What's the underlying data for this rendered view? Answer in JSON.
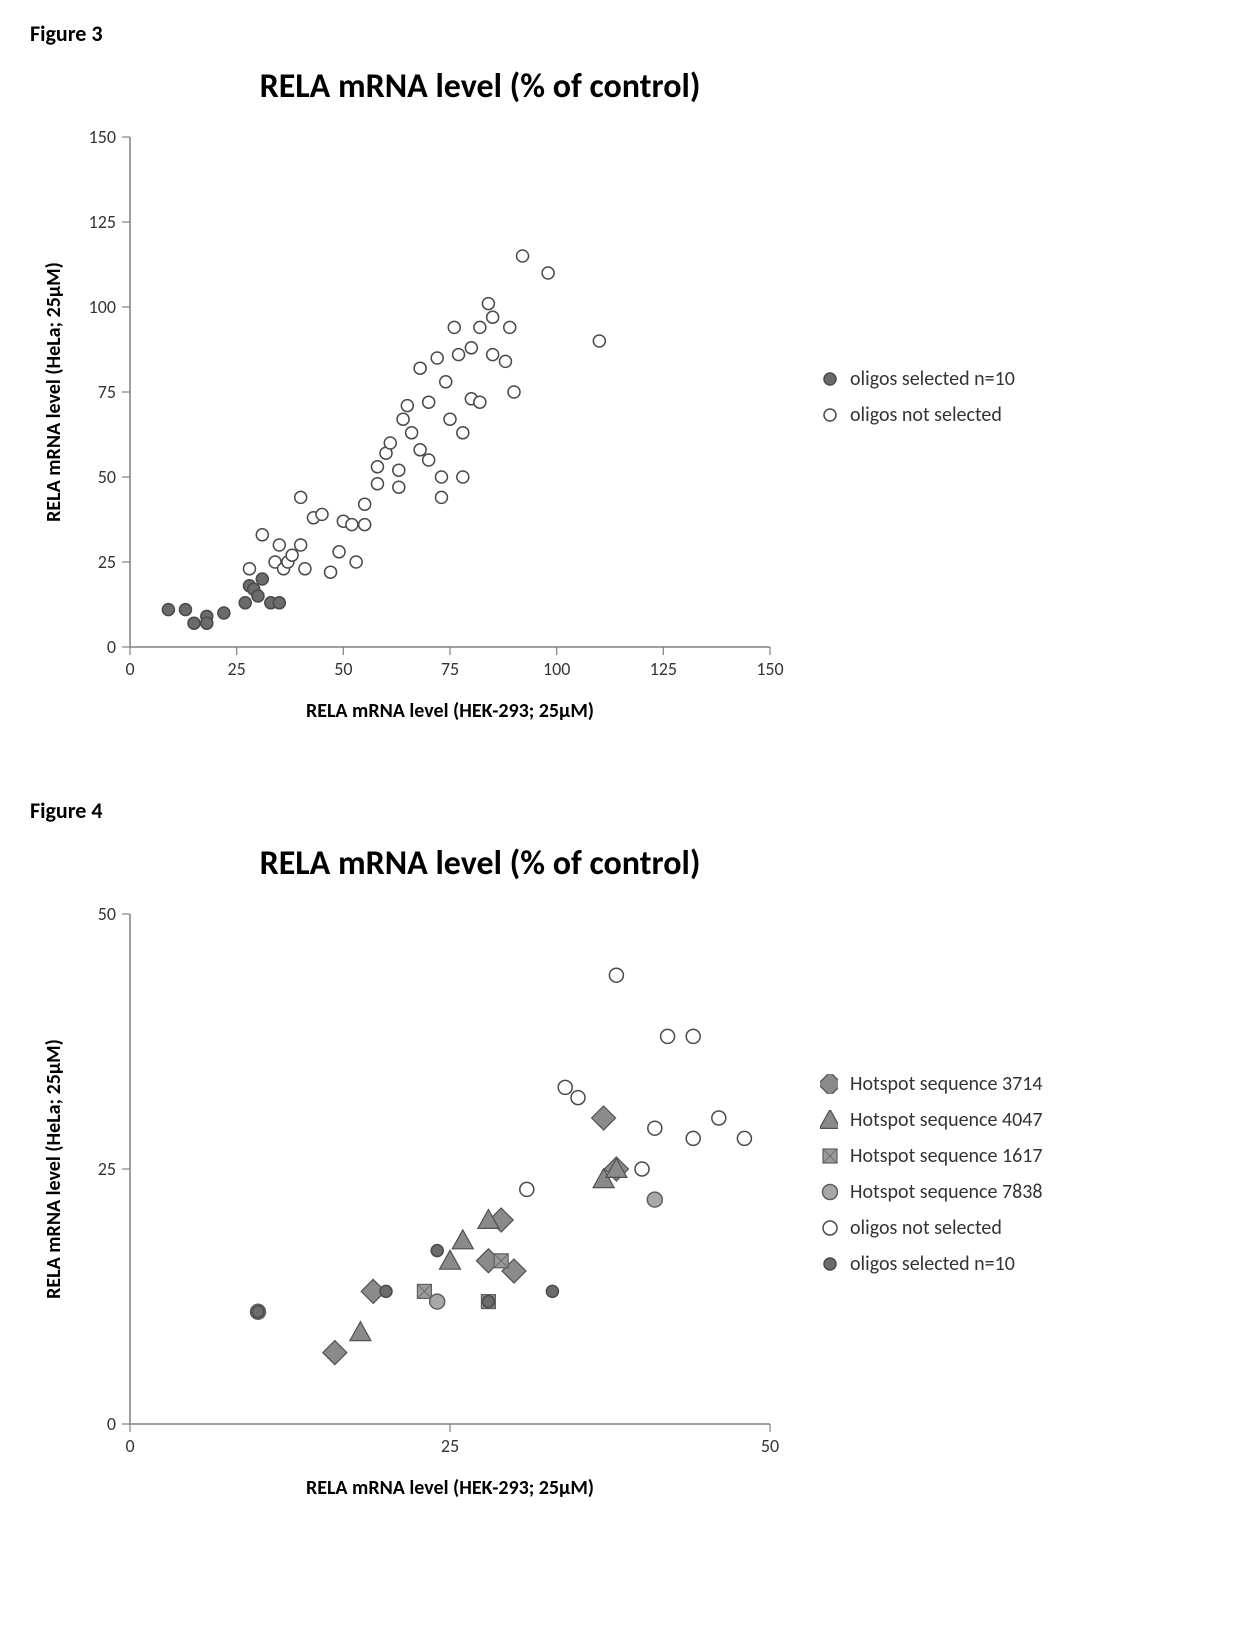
{
  "figure3": {
    "label": "Figure 3",
    "chart": {
      "type": "scatter",
      "title": "RELA mRNA level (% of control)",
      "title_fontsize": 34,
      "title_fontweight": "bold",
      "xlabel": "RELA mRNA level (HEK-293; 25µM)",
      "ylabel": "RELA mRNA level (HeLa; 25µM)",
      "label_fontsize": 20,
      "tick_fontsize": 18,
      "xlim": [
        0,
        150
      ],
      "ylim": [
        0,
        150
      ],
      "xticks": [
        0,
        25,
        50,
        75,
        100,
        125,
        150
      ],
      "yticks": [
        0,
        25,
        50,
        75,
        100,
        125,
        150
      ],
      "tickmark_color": "#808080",
      "plot_bg": "#ffffff",
      "axis_color": "#808080",
      "series": [
        {
          "name": "oligos selected n=10",
          "marker": "circle",
          "fill": "#6b6b6b",
          "stroke": "#4a4a4a",
          "size": 12,
          "data": [
            [
              9,
              11
            ],
            [
              13,
              11
            ],
            [
              15,
              7
            ],
            [
              18,
              9
            ],
            [
              18,
              7
            ],
            [
              22,
              10
            ],
            [
              27,
              13
            ],
            [
              28,
              18
            ],
            [
              29,
              17
            ],
            [
              30,
              15
            ],
            [
              31,
              20
            ],
            [
              33,
              13
            ],
            [
              35,
              13
            ]
          ]
        },
        {
          "name": "oligos not selected",
          "marker": "circle",
          "fill": "#ffffff",
          "stroke": "#4a4a4a",
          "size": 12,
          "data": [
            [
              28,
              23
            ],
            [
              31,
              33
            ],
            [
              34,
              25
            ],
            [
              35,
              30
            ],
            [
              36,
              23
            ],
            [
              37,
              25
            ],
            [
              38,
              27
            ],
            [
              40,
              44
            ],
            [
              40,
              30
            ],
            [
              41,
              23
            ],
            [
              43,
              38
            ],
            [
              45,
              39
            ],
            [
              47,
              22
            ],
            [
              49,
              28
            ],
            [
              50,
              37
            ],
            [
              52,
              36
            ],
            [
              53,
              25
            ],
            [
              55,
              42
            ],
            [
              55,
              36
            ],
            [
              58,
              48
            ],
            [
              58,
              53
            ],
            [
              60,
              57
            ],
            [
              61,
              60
            ],
            [
              63,
              47
            ],
            [
              63,
              52
            ],
            [
              64,
              67
            ],
            [
              65,
              71
            ],
            [
              66,
              63
            ],
            [
              68,
              58
            ],
            [
              68,
              82
            ],
            [
              70,
              72
            ],
            [
              70,
              55
            ],
            [
              72,
              85
            ],
            [
              73,
              50
            ],
            [
              73,
              44
            ],
            [
              74,
              78
            ],
            [
              75,
              67
            ],
            [
              76,
              94
            ],
            [
              77,
              86
            ],
            [
              78,
              50
            ],
            [
              78,
              63
            ],
            [
              80,
              88
            ],
            [
              80,
              73
            ],
            [
              82,
              94
            ],
            [
              82,
              72
            ],
            [
              84,
              101
            ],
            [
              85,
              86
            ],
            [
              85,
              97
            ],
            [
              88,
              84
            ],
            [
              89,
              94
            ],
            [
              90,
              75
            ],
            [
              92,
              115
            ],
            [
              98,
              110
            ],
            [
              110,
              90
            ]
          ]
        }
      ]
    }
  },
  "figure4": {
    "label": "Figure 4",
    "chart": {
      "type": "scatter",
      "title": "RELA mRNA level (% of control)",
      "title_fontsize": 34,
      "title_fontweight": "bold",
      "xlabel": "RELA mRNA level (HEK-293; 25µM)",
      "ylabel": "RELA mRNA level (HeLa; 25µM)",
      "label_fontsize": 20,
      "tick_fontsize": 18,
      "xlim": [
        0,
        50
      ],
      "ylim": [
        0,
        50
      ],
      "xticks": [
        0,
        25,
        50
      ],
      "yticks": [
        0,
        25,
        50
      ],
      "tickmark_color": "#808080",
      "plot_bg": "#ffffff",
      "axis_color": "#808080",
      "series": [
        {
          "name": "Hotspot sequence  3714",
          "marker": "diamond",
          "fill": "#8a8a8a",
          "stroke": "#505050",
          "size": 16,
          "data": [
            [
              16,
              7
            ],
            [
              19,
              13
            ],
            [
              28,
              16
            ],
            [
              29,
              20
            ],
            [
              30,
              15
            ],
            [
              37,
              30
            ],
            [
              38,
              25
            ]
          ]
        },
        {
          "name": "Hotspot sequence 4047",
          "marker": "triangle",
          "fill": "#8a8a8a",
          "stroke": "#505050",
          "size": 15,
          "data": [
            [
              18,
              9
            ],
            [
              25,
              16
            ],
            [
              26,
              18
            ],
            [
              28,
              20
            ],
            [
              37,
              24
            ],
            [
              38,
              25
            ]
          ]
        },
        {
          "name": "Hotspot sequence 1617",
          "marker": "square-hatch",
          "fill": "#9a9a9a",
          "stroke": "#606060",
          "size": 14,
          "data": [
            [
              23,
              13
            ],
            [
              28,
              12
            ],
            [
              29,
              16
            ]
          ]
        },
        {
          "name": "Hotspot sequence 7838",
          "marker": "circle",
          "fill": "#a8a8a8",
          "stroke": "#606060",
          "size": 15,
          "data": [
            [
              10,
              11
            ],
            [
              24,
              12
            ],
            [
              41,
              22
            ]
          ]
        },
        {
          "name": "oligos not selected",
          "marker": "circle",
          "fill": "#ffffff",
          "stroke": "#4a4a4a",
          "size": 14,
          "data": [
            [
              31,
              23
            ],
            [
              34,
              33
            ],
            [
              35,
              32
            ],
            [
              38,
              44
            ],
            [
              40,
              25
            ],
            [
              41,
              29
            ],
            [
              42,
              38
            ],
            [
              44,
              38
            ],
            [
              44,
              28
            ],
            [
              46,
              30
            ],
            [
              48,
              28
            ]
          ]
        },
        {
          "name": "oligos selected n=10",
          "marker": "circle",
          "fill": "#6b6b6b",
          "stroke": "#4a4a4a",
          "size": 12,
          "data": [
            [
              10,
              11
            ],
            [
              20,
              13
            ],
            [
              24,
              17
            ],
            [
              28,
              12
            ],
            [
              33,
              13
            ]
          ]
        }
      ]
    }
  }
}
